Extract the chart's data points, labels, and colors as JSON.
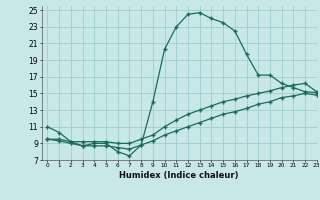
{
  "xlabel": "Humidex (Indice chaleur)",
  "xlim": [
    -0.5,
    23
  ],
  "ylim": [
    7,
    25.5
  ],
  "xticks": [
    0,
    1,
    2,
    3,
    4,
    5,
    6,
    7,
    8,
    9,
    10,
    11,
    12,
    13,
    14,
    15,
    16,
    17,
    18,
    19,
    20,
    21,
    22,
    23
  ],
  "yticks": [
    7,
    9,
    11,
    13,
    15,
    17,
    19,
    21,
    23,
    25
  ],
  "bg_color": "#c8e8e8",
  "grid_color": "#9ecece",
  "line_color": "#1a6b5a",
  "line1_x": [
    0,
    1,
    2,
    3,
    4,
    5,
    6,
    7,
    8,
    9,
    10,
    11,
    12,
    13,
    14,
    15,
    16,
    17,
    18,
    19,
    20,
    21,
    22,
    23
  ],
  "line1_y": [
    11,
    10.3,
    9.2,
    8.7,
    9.0,
    9.0,
    8.0,
    7.5,
    8.8,
    14.0,
    20.3,
    23.0,
    24.5,
    24.7,
    24.0,
    23.5,
    22.5,
    19.7,
    17.2,
    17.2,
    16.2,
    15.7,
    15.2,
    15.1
  ],
  "line1_markers": [
    0,
    1,
    2,
    3,
    4,
    5,
    6,
    7,
    8,
    9,
    10,
    11,
    12,
    13,
    14,
    15,
    16,
    17,
    18,
    19,
    20,
    21,
    22,
    23
  ],
  "line2_x": [
    0,
    1,
    2,
    3,
    4,
    5,
    6,
    7,
    8,
    9,
    10,
    11,
    12,
    13,
    14,
    15,
    16,
    17,
    18,
    19,
    20,
    21,
    22,
    23
  ],
  "line2_y": [
    9.5,
    9.5,
    9.2,
    9.2,
    9.2,
    9.2,
    9.0,
    9.0,
    9.5,
    10.0,
    11.0,
    11.8,
    12.5,
    13.0,
    13.5,
    14.0,
    14.3,
    14.7,
    15.0,
    15.3,
    15.7,
    16.0,
    16.2,
    15.2
  ],
  "line3_x": [
    0,
    1,
    2,
    3,
    4,
    5,
    6,
    7,
    8,
    9,
    10,
    11,
    12,
    13,
    14,
    15,
    16,
    17,
    18,
    19,
    20,
    21,
    22,
    23
  ],
  "line3_y": [
    9.5,
    9.3,
    9.0,
    8.7,
    8.7,
    8.7,
    8.5,
    8.3,
    8.8,
    9.3,
    10.0,
    10.5,
    11.0,
    11.5,
    12.0,
    12.5,
    12.8,
    13.2,
    13.7,
    14.0,
    14.5,
    14.7,
    15.0,
    14.8
  ]
}
